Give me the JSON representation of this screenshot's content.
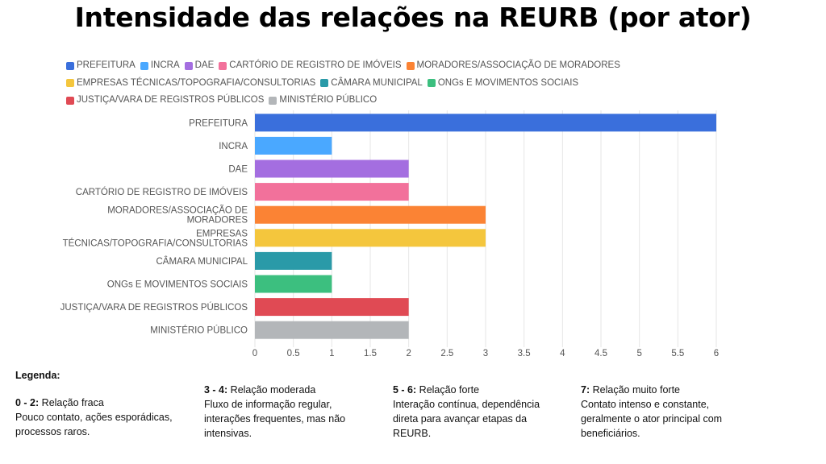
{
  "title": "Intensidade das relações na REURB (por ator)",
  "chart_data": {
    "type": "bar",
    "orientation": "horizontal",
    "categories": [
      "PREFEITURA",
      "INCRA",
      "DAE",
      "CARTÓRIO DE REGISTRO DE IMÓVEIS",
      "MORADORES/ASSOCIAÇÃO DE MORADORES",
      "EMPRESAS TÉCNICAS/TOPOGRAFIA/CONSULTORIAS",
      "CÂMARA MUNICIPAL",
      "ONGs E MOVIMENTOS SOCIAIS",
      "JUSTIÇA/VARA DE REGISTROS PÚBLICOS",
      "MINISTÉRIO PÚBLICO"
    ],
    "category_labels": [
      [
        "PREFEITURA"
      ],
      [
        "INCRA"
      ],
      [
        "DAE"
      ],
      [
        "CARTÓRIO DE REGISTRO DE IMÓVEIS"
      ],
      [
        "MORADORES/ASSOCIAÇÃO DE",
        "MORADORES"
      ],
      [
        "EMPRESAS",
        "TÉCNICAS/TOPOGRAFIA/CONSULTORIAS"
      ],
      [
        "CÂMARA MUNICIPAL"
      ],
      [
        "ONGs E MOVIMENTOS SOCIAIS"
      ],
      [
        "JUSTIÇA/VARA DE REGISTROS PÚBLICOS"
      ],
      [
        "MINISTÉRIO PÚBLICO"
      ]
    ],
    "values": [
      6,
      1,
      2,
      2,
      3,
      3,
      1,
      1,
      2,
      2
    ],
    "colors": [
      "#3a6fdc",
      "#4aa8ff",
      "#a46ee0",
      "#f2719b",
      "#fb8334",
      "#f4c63d",
      "#2a9aa8",
      "#3cbf7f",
      "#e04a54",
      "#b3b6b9"
    ],
    "xlim": [
      0,
      6
    ],
    "xticks": [
      "0",
      "0.5",
      "1",
      "1.5",
      "2",
      "2.5",
      "3",
      "3.5",
      "4",
      "4.5",
      "5",
      "5.5",
      "6"
    ],
    "grid": true,
    "legend_position": "top",
    "legend": [
      "PREFEITURA",
      "INCRA",
      "DAE",
      "CARTÓRIO DE REGISTRO DE IMÓVEIS",
      "MORADORES/ASSOCIAÇÃO DE MORADORES",
      "EMPRESAS TÉCNICAS/TOPOGRAFIA/CONSULTORIAS",
      "CÂMARA MUNICIPAL",
      "ONGs E MOVIMENTOS SOCIAIS",
      "JUSTIÇA/VARA DE REGISTROS PÚBLICOS",
      "MINISTÉRIO PÚBLICO"
    ]
  },
  "scale_legend": {
    "heading": "Legenda:",
    "items": [
      {
        "range": "0 - 2:",
        "label": "Relação fraca",
        "description": [
          "Pouco contato, ações esporádicas,",
          "processos raros."
        ]
      },
      {
        "range": "3 - 4:",
        "label": "Relação moderada",
        "description": [
          "Fluxo de informação regular,",
          "interações frequentes, mas não",
          "intensivas."
        ]
      },
      {
        "range": "5 - 6:",
        "label": "Relação forte",
        "description": [
          "Interação contínua, dependência",
          "direta para avançar etapas da",
          "REURB."
        ]
      },
      {
        "range": "7:",
        "label": "Relação muito forte",
        "description": [
          "Contato intenso e constante,",
          "geralmente o ator principal com",
          "beneficiários."
        ]
      }
    ]
  }
}
